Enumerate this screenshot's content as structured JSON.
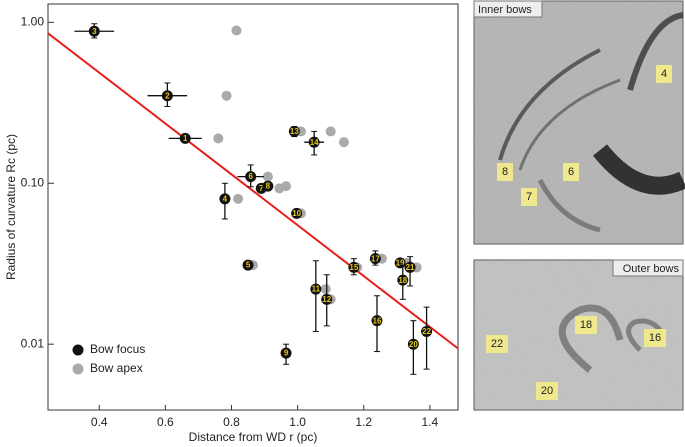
{
  "chart_data": {
    "type": "scatter",
    "x_label": "Distance from WD r (pc)",
    "y_label": "Radius of curvature Rc (pc)",
    "xlim": [
      0.245,
      1.485
    ],
    "ylim": [
      0.0039,
      1.3
    ],
    "log_y": true,
    "xticks": [
      0.4,
      0.6,
      0.8,
      {
        "value": 1.0,
        "label": "1.0"
      },
      1.2,
      1.4
    ],
    "yticks": [
      {
        "value": 1.0,
        "label": "1.00"
      },
      {
        "value": 0.1,
        "label": "0.10"
      },
      0.01
    ],
    "legend": "lower left",
    "series": [
      {
        "name": "Bow apex",
        "color": "#aaaaaa",
        "x": [
          0.815,
          0.785,
          0.76,
          1.01,
          1.1,
          1.14,
          0.91,
          0.945,
          0.965,
          0.82,
          1.01,
          0.865,
          1.085,
          1.1,
          1.18,
          1.255,
          1.33,
          1.36
        ],
        "values": [
          0.89,
          0.35,
          0.19,
          0.21,
          0.21,
          0.18,
          0.11,
          0.093,
          0.096,
          0.08,
          0.065,
          0.031,
          0.022,
          0.019,
          0.03,
          0.034,
          0.032,
          0.03
        ]
      },
      {
        "name": "Bow focus",
        "color": "#111111",
        "label_color": "#e6c619",
        "labels": [
          "3",
          "2",
          "1",
          "13",
          "14",
          "6",
          "7",
          "8",
          "4",
          "10",
          "5",
          "11",
          "12",
          "15",
          "17",
          "19",
          "21",
          "18",
          "16",
          "9",
          "20",
          "22"
        ],
        "x": [
          0.385,
          0.606,
          0.66,
          0.99,
          1.05,
          0.858,
          0.89,
          0.91,
          0.78,
          0.997,
          0.85,
          1.055,
          1.088,
          1.17,
          1.235,
          1.31,
          1.34,
          1.318,
          1.24,
          0.965,
          1.35,
          1.39
        ],
        "values": [
          0.88,
          0.35,
          0.19,
          0.21,
          0.18,
          0.11,
          0.093,
          0.096,
          0.08,
          0.065,
          0.031,
          0.022,
          0.019,
          0.03,
          0.034,
          0.032,
          0.03,
          0.025,
          0.014,
          0.0088,
          0.01,
          0.012
        ],
        "x_err": [
          0.06,
          0.06,
          0.05,
          0.015,
          0.03,
          0.04,
          null,
          null,
          null,
          null,
          null,
          null,
          null,
          null,
          null,
          null,
          null,
          null,
          null,
          null,
          null,
          null
        ],
        "y_low": [
          0.8,
          0.3,
          null,
          0.195,
          0.15,
          0.095,
          null,
          null,
          0.06,
          null,
          null,
          0.012,
          0.013,
          0.027,
          0.031,
          null,
          0.023,
          0.019,
          0.009,
          0.0075,
          0.0065,
          0.007
        ],
        "y_high": [
          0.98,
          0.42,
          null,
          0.225,
          0.21,
          0.13,
          null,
          null,
          0.1,
          null,
          null,
          0.033,
          0.027,
          0.034,
          0.038,
          null,
          0.035,
          0.031,
          0.02,
          0.01,
          0.014,
          0.017
        ]
      },
      {
        "name": null,
        "color": "#e8201c",
        "x": [
          0.245,
          1.485
        ],
        "values": [
          0.855,
          0.0094
        ]
      }
    ]
  },
  "panels": {
    "inner": {
      "title": "Inner bows",
      "labels": [
        "4",
        "8",
        "7",
        "6"
      ]
    },
    "outer": {
      "title": "Outer bows",
      "labels": [
        "18",
        "16",
        "22",
        "20"
      ]
    }
  }
}
